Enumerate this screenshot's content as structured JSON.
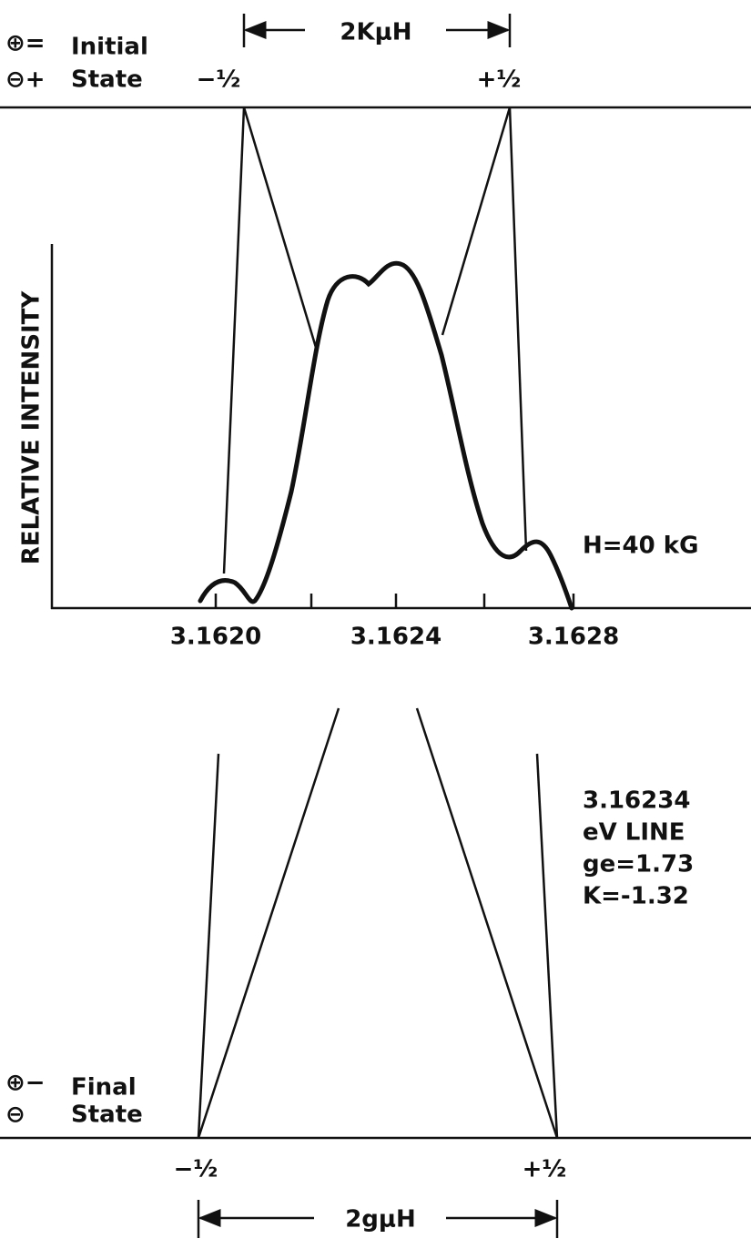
{
  "initial_state": {
    "symbols": [
      "⊕=",
      "⊖+"
    ],
    "label": [
      "Initial",
      "State"
    ],
    "left": "−½",
    "right": "+½",
    "splitting": "2KμH"
  },
  "final_state": {
    "symbols": [
      "⊕−",
      "⊖"
    ],
    "label": [
      "Final",
      "State"
    ],
    "left": "−½",
    "right": "+½",
    "splitting": "2gμH"
  },
  "spectrum": {
    "y_label": "RELATIVE INTENSITY",
    "x_tick_labels": [
      "3.1620",
      "3.1624",
      "3.1628"
    ],
    "field": "H=40 kG"
  },
  "line_info": [
    "3.16234",
    "eV LINE",
    "ge=1.73",
    "K=-1.32"
  ]
}
